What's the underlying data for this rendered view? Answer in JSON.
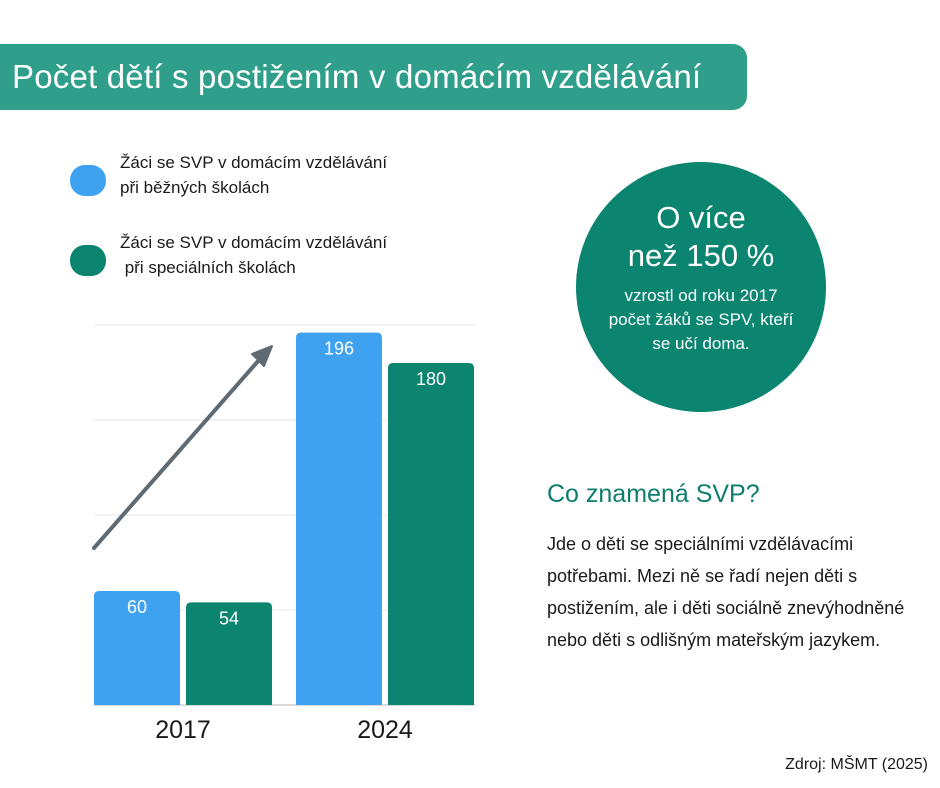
{
  "title": "Počet dětí s postižením v domácím vzdělávání",
  "legend": [
    {
      "label": "Žáci se SVP v domácím vzdělávání\npři běžných školách",
      "color": "#3fa2f0"
    },
    {
      "label": "Žáci se SVP v domácím vzdělávání\n při speciálních školách",
      "color": "#0b8470"
    }
  ],
  "chart_data": {
    "type": "bar",
    "categories": [
      "2017",
      "2024"
    ],
    "series": [
      {
        "name": "Žáci se SVP v domácím vzdělávání při běžných školách",
        "values": [
          60,
          196
        ],
        "color": "#3fa2f0"
      },
      {
        "name": "Žáci se SVP v domácím vzdělávání při speciálních školách",
        "values": [
          54,
          180
        ],
        "color": "#0b8470"
      }
    ],
    "data_labels": true,
    "ylim": [
      0,
      200
    ],
    "grid": true,
    "trend_arrow": true
  },
  "callout": {
    "line1": "O více",
    "line2": "než 150 %",
    "text": "vzrostl od roku 2017 počet žáků se SPV, kteří se učí doma."
  },
  "info": {
    "heading": "Co znamená SVP?",
    "body": "Jde o děti se speciálními vzdělávacími potřebami. Mezi ně se řadí nejen děti s postižením, ale i děti sociálně znevýhodněné nebo děti s odlišným mateřským jazykem."
  },
  "source": "Zdroj: MŠMT (2025)"
}
